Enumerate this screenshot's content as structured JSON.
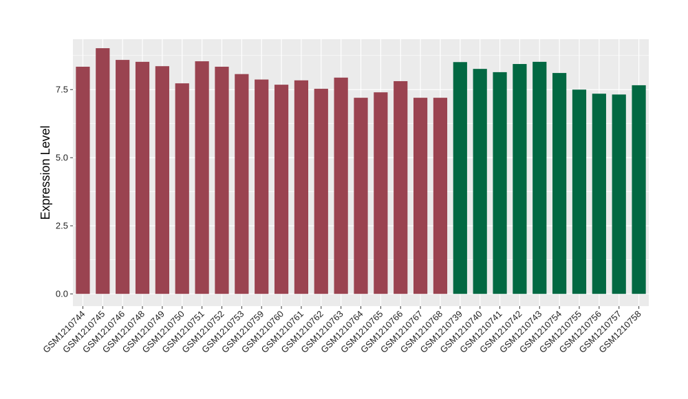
{
  "chart_data": {
    "type": "bar",
    "title": "",
    "xlabel": "",
    "ylabel": "Expression Level",
    "ylim": [
      -0.45,
      9.35
    ],
    "yticks": [
      0.0,
      2.5,
      5.0,
      7.5
    ],
    "ytick_labels": [
      "0.0",
      "2.5",
      "5.0",
      "7.5"
    ],
    "grid": true,
    "legend": "none",
    "categories": [
      "GSM1210744",
      "GSM1210745",
      "GSM1210746",
      "GSM1210748",
      "GSM1210749",
      "GSM1210750",
      "GSM1210751",
      "GSM1210752",
      "GSM1210753",
      "GSM1210759",
      "GSM1210760",
      "GSM1210761",
      "GSM1210762",
      "GSM1210763",
      "GSM1210764",
      "GSM1210765",
      "GSM1210766",
      "GSM1210767",
      "GSM1210768",
      "GSM1210739",
      "GSM1210740",
      "GSM1210741",
      "GSM1210742",
      "GSM1210743",
      "GSM1210754",
      "GSM1210755",
      "GSM1210756",
      "GSM1210757",
      "GSM1210758"
    ],
    "values": [
      8.34,
      9.02,
      8.59,
      8.52,
      8.36,
      7.73,
      8.54,
      8.34,
      8.07,
      7.87,
      7.68,
      7.84,
      7.53,
      7.94,
      7.2,
      7.4,
      7.81,
      7.2,
      7.2,
      8.51,
      8.26,
      8.14,
      8.44,
      8.52,
      8.11,
      7.5,
      7.35,
      7.32,
      7.66
    ],
    "bar_colors": [
      "#9a4350",
      "#9a4350",
      "#9a4350",
      "#9a4350",
      "#9a4350",
      "#9a4350",
      "#9a4350",
      "#9a4350",
      "#9a4350",
      "#9a4350",
      "#9a4350",
      "#9a4350",
      "#9a4350",
      "#9a4350",
      "#9a4350",
      "#9a4350",
      "#9a4350",
      "#9a4350",
      "#9a4350",
      "#026842",
      "#026842",
      "#026842",
      "#026842",
      "#026842",
      "#026842",
      "#026842",
      "#026842",
      "#026842",
      "#026842"
    ],
    "colors": {
      "panel_background": "#ebebeb",
      "grid": "#ffffff"
    }
  }
}
